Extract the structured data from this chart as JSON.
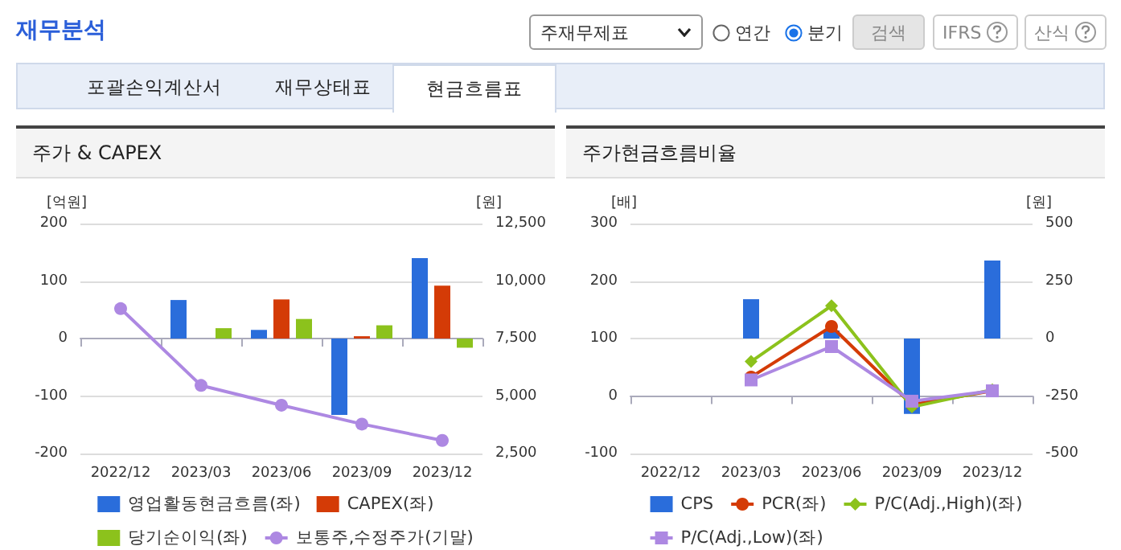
{
  "chart_data": [
    {
      "type": "other",
      "title": "재무분석",
      "annotations": [
        "주재무제표",
        "연간",
        "분기",
        "검색",
        "IFRS",
        "산식",
        "포괄손익계산서",
        "재무상태표",
        "현금흐름표"
      ]
    },
    {
      "type": "bar",
      "title": "주가 & CAPEX",
      "ylabel": "[억원]",
      "y2label": "[원]",
      "categories": [
        "2022/12",
        "2023/03",
        "2023/06",
        "2023/09",
        "2023/12"
      ],
      "series": [
        {
          "name": "영업활동현금흐름(좌)",
          "color": "#2a6ddb",
          "values": [
            null,
            67,
            15,
            -133,
            140
          ]
        },
        {
          "name": "CAPEX(좌)",
          "color": "#d43b06",
          "values": [
            null,
            null,
            68,
            4,
            92
          ]
        },
        {
          "name": "당기순이익(좌)",
          "color": "#8cc21c",
          "values": [
            null,
            18,
            34,
            23,
            -16
          ]
        },
        {
          "name": "보통주,수정주가(기말)",
          "type": "line",
          "axis": "y2",
          "marker": "circle",
          "color": "#ad88e2",
          "values": [
            8800,
            5460,
            4600,
            3780,
            3070
          ]
        }
      ],
      "ylim": [
        -200,
        200
      ],
      "yticks": [
        -200,
        -100,
        0,
        100,
        200
      ],
      "y2lim": [
        2500,
        12500
      ],
      "y2ticks": [
        {
          "value": 2500,
          "label": "2,500"
        },
        {
          "value": 5000,
          "label": "5,000"
        },
        {
          "value": 7500,
          "label": "7,500"
        },
        {
          "value": 10000,
          "label": "10,000"
        },
        {
          "value": 12500,
          "label": "12,500"
        }
      ],
      "grid": "y",
      "legend": "bottom"
    },
    {
      "type": "bar",
      "title": "주가현금흐름비율",
      "ylabel": "[배]",
      "y2label": "[원]",
      "categories": [
        "2022/12",
        "2023/03",
        "2023/06",
        "2023/09",
        "2023/12"
      ],
      "series": [
        {
          "name": "CPS",
          "axis": "y2",
          "color": "#2a6ddb",
          "values": [
            null,
            171,
            35,
            -328,
            339
          ]
        },
        {
          "name": "PCR(좌)",
          "type": "line",
          "marker": "circle",
          "color": "#d43b06",
          "values": [
            null,
            33,
            121,
            -15,
            9
          ]
        },
        {
          "name": "P/C(Adj.,High)(좌)",
          "type": "line",
          "marker": "diamond",
          "color": "#8cc21c",
          "values": [
            null,
            60,
            157,
            -19,
            11
          ]
        },
        {
          "name": "P/C(Adj.,Low)(좌)",
          "type": "line",
          "marker": "square",
          "color": "#ad88e2",
          "values": [
            null,
            28,
            86,
            -9,
            9
          ]
        }
      ],
      "ylim": [
        -100,
        300
      ],
      "yticks": [
        -100,
        0,
        100,
        200,
        300
      ],
      "y2lim": [
        -500,
        500
      ],
      "y2ticks": [
        -500,
        -250,
        0,
        250,
        500
      ],
      "grid": "y",
      "legend": "bottom"
    }
  ]
}
